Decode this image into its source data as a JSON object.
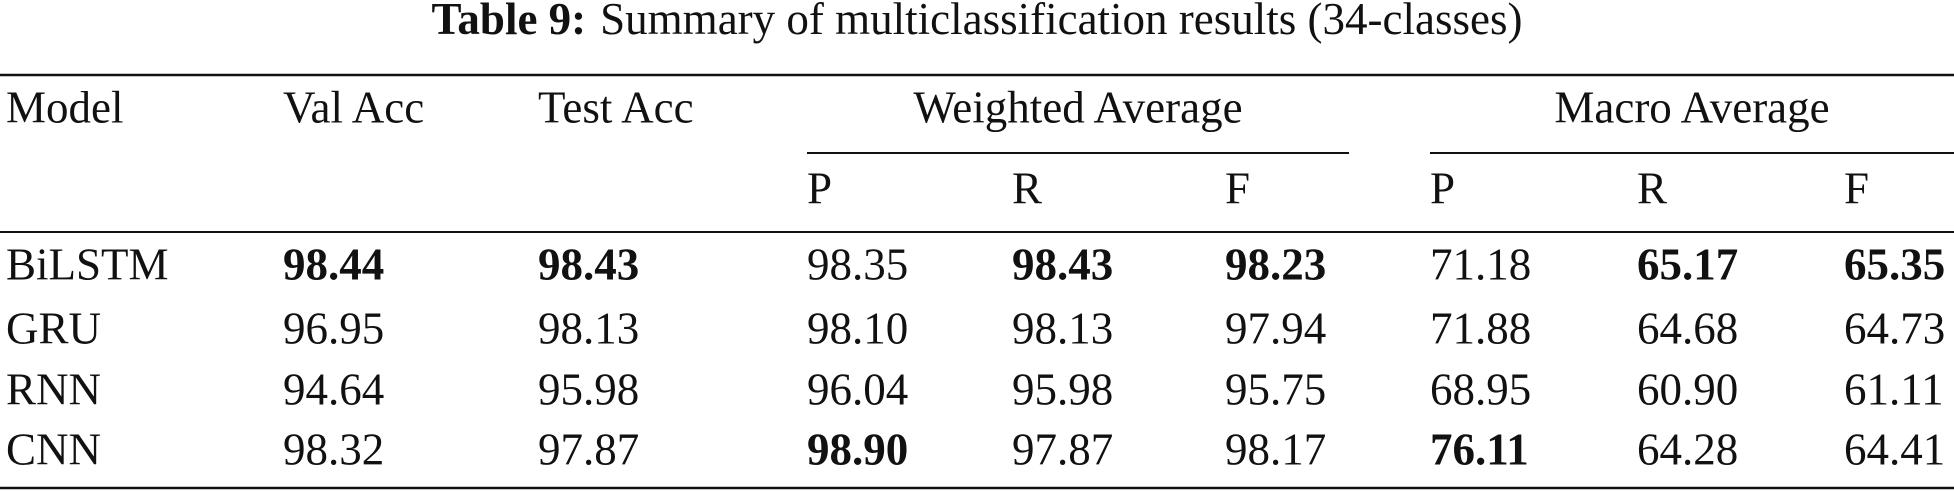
{
  "caption": {
    "label": "Table 9:",
    "text": "Summary of multiclassification results (34-classes)"
  },
  "table": {
    "headers": [
      "Model",
      "Val Acc",
      "Test Acc"
    ],
    "groups": [
      {
        "name": "Weighted Average",
        "subheaders": [
          "P",
          "R",
          "F"
        ]
      },
      {
        "name": "Macro Average",
        "subheaders": [
          "P",
          "R",
          "F"
        ]
      }
    ],
    "rows": [
      {
        "model": "BiLSTM",
        "cells": [
          "98.44",
          "98.43",
          "98.35",
          "98.43",
          "98.23",
          "71.18",
          "65.17",
          "65.35"
        ],
        "bold": [
          true,
          true,
          false,
          true,
          true,
          false,
          true,
          true
        ]
      },
      {
        "model": "GRU",
        "cells": [
          "96.95",
          "98.13",
          "98.10",
          "98.13",
          "97.94",
          "71.88",
          "64.68",
          "64.73"
        ],
        "bold": [
          false,
          false,
          false,
          false,
          false,
          false,
          false,
          false
        ]
      },
      {
        "model": "RNN",
        "cells": [
          "94.64",
          "95.98",
          "96.04",
          "95.98",
          "95.75",
          "68.95",
          "60.90",
          "61.11"
        ],
        "bold": [
          false,
          false,
          false,
          false,
          false,
          false,
          false,
          false
        ]
      },
      {
        "model": "CNN",
        "cells": [
          "98.32",
          "97.87",
          "98.90",
          "97.87",
          "98.17",
          "76.11",
          "64.28",
          "64.41"
        ],
        "bold": [
          false,
          false,
          true,
          false,
          false,
          true,
          false,
          false
        ]
      }
    ]
  }
}
